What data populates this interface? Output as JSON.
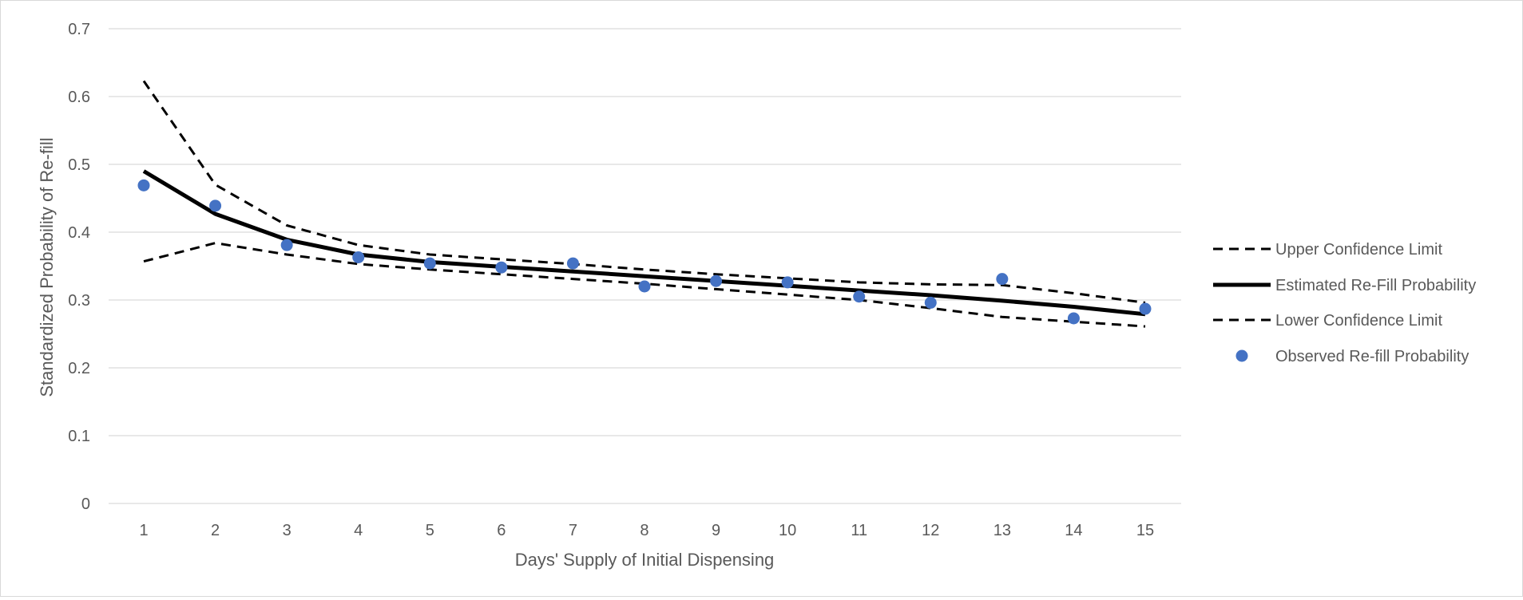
{
  "chart_data": {
    "type": "line",
    "title": "",
    "xlabel": "Days' Supply of Initial Dispensing",
    "ylabel": "Standardized Probability of Re-fill",
    "ylim": [
      0,
      0.7
    ],
    "y_ticks": [
      "0",
      "0.1",
      "0.2",
      "0.3",
      "0.4",
      "0.5",
      "0.6",
      "0.7"
    ],
    "categories": [
      "1",
      "2",
      "3",
      "4",
      "5",
      "6",
      "7",
      "8",
      "9",
      "10",
      "11",
      "12",
      "13",
      "14",
      "15"
    ],
    "grid": true,
    "legend_position": "right",
    "series": [
      {
        "name": "Upper Confidence Limit",
        "style": "dashed",
        "color": "#000000",
        "values": [
          0.623,
          0.47,
          0.41,
          0.381,
          0.367,
          0.36,
          0.353,
          0.345,
          0.338,
          0.332,
          0.326,
          0.323,
          0.322,
          0.31,
          0.296
        ]
      },
      {
        "name": "Estimated Re-Fill Probability",
        "style": "solid",
        "color": "#000000",
        "values": [
          0.49,
          0.427,
          0.389,
          0.367,
          0.356,
          0.349,
          0.342,
          0.335,
          0.328,
          0.321,
          0.314,
          0.307,
          0.299,
          0.29,
          0.279
        ]
      },
      {
        "name": "Lower Confidence Limit",
        "style": "dashed",
        "color": "#000000",
        "values": [
          0.357,
          0.384,
          0.367,
          0.353,
          0.345,
          0.338,
          0.331,
          0.324,
          0.316,
          0.308,
          0.3,
          0.288,
          0.275,
          0.268,
          0.261
        ]
      },
      {
        "name": "Observed Re-fill Probability",
        "style": "markers",
        "color": "#4472C4",
        "values": [
          0.469,
          0.439,
          0.381,
          0.363,
          0.354,
          0.348,
          0.354,
          0.32,
          0.328,
          0.326,
          0.305,
          0.296,
          0.331,
          0.273,
          0.287
        ]
      }
    ]
  }
}
